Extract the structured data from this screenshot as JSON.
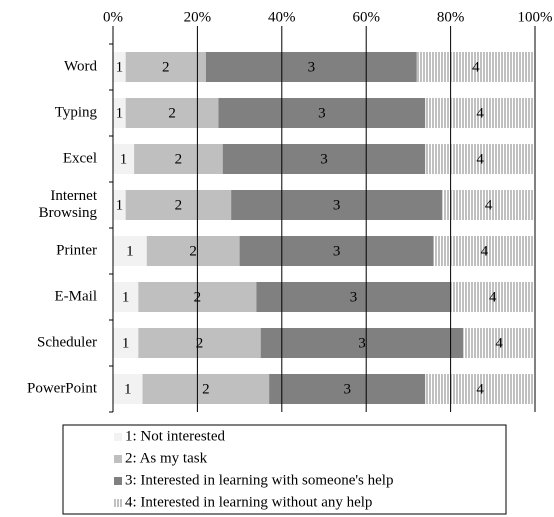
{
  "chart_data": {
    "type": "bar",
    "orientation": "horizontal",
    "stacked": true,
    "categories": [
      "Word",
      "Typing",
      "Excel",
      "Internet Browsing",
      "Printer",
      "E-Mail",
      "Scheduler",
      "PowerPoint"
    ],
    "series": [
      {
        "name": "1: Not interested",
        "label": "1",
        "color": "#f2f2f2",
        "values": [
          3,
          3,
          5,
          3,
          8,
          6,
          6,
          7
        ]
      },
      {
        "name": "2: As my task",
        "label": "2",
        "color": "#bfbfbf",
        "values": [
          19,
          22,
          21,
          25,
          22,
          28,
          29,
          30
        ]
      },
      {
        "name": "3: Interested in learning with someone's help",
        "label": "3",
        "color": "#808080",
        "values": [
          50,
          49,
          48,
          50,
          46,
          46,
          48,
          37
        ]
      },
      {
        "name": "4: Interested in learning without any help",
        "label": "4",
        "color": "stripes",
        "values": [
          28,
          26,
          26,
          22,
          24,
          20,
          17,
          26
        ]
      }
    ],
    "xlim": [
      0,
      100
    ],
    "xticks": [
      {
        "value": 0,
        "label": "0%"
      },
      {
        "value": 20,
        "label": "20%"
      },
      {
        "value": 40,
        "label": "40%"
      },
      {
        "value": 60,
        "label": "60%"
      },
      {
        "value": 80,
        "label": "80%"
      },
      {
        "value": 100,
        "label": "100%"
      }
    ],
    "grid": true,
    "legend": "bottom"
  }
}
